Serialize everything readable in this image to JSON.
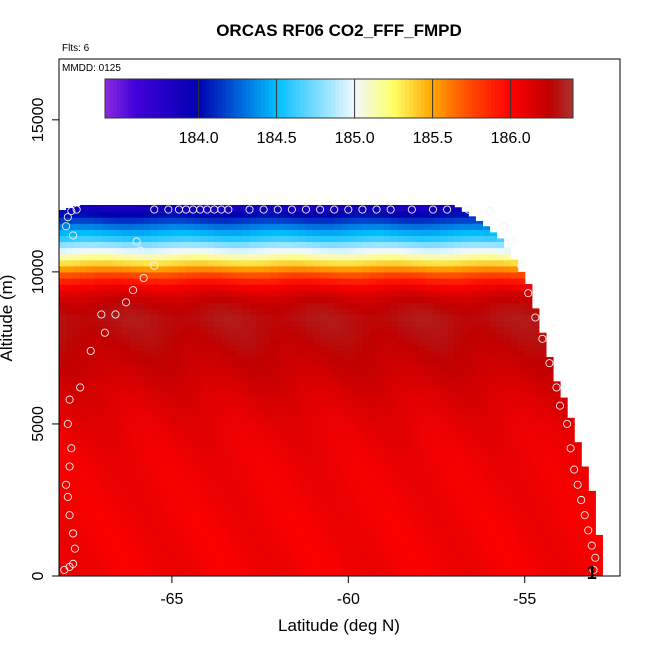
{
  "chart_data": {
    "type": "heatmap",
    "title": "ORCAS RF06 CO2_FFF_FMPD",
    "annotations": {
      "flights": "Flts: 6",
      "date": "MMDD: 0125"
    },
    "xlabel": "Latitude (deg N)",
    "ylabel": "Altitude (m)",
    "xlim": [
      -68.2,
      -52.3
    ],
    "ylim": [
      0,
      17000
    ],
    "x_ticks": [
      -65,
      -60,
      -55
    ],
    "x_tick_labels": [
      "-65",
      "-60",
      "-55"
    ],
    "y_ticks": [
      0,
      5000,
      10000,
      15000
    ],
    "y_tick_labels": [
      "0",
      "5000",
      "10000",
      "15000"
    ],
    "colorbar": {
      "min": 183.4,
      "max": 186.4,
      "ticks": [
        184.0,
        184.5,
        185.0,
        185.5,
        186.0
      ],
      "tick_labels": [
        "184.0",
        "184.5",
        "185.0",
        "185.5",
        "186.0"
      ],
      "stops": [
        {
          "v": 183.4,
          "c": "#8a2be2"
        },
        {
          "v": 183.6,
          "c": "#4000d8"
        },
        {
          "v": 184.0,
          "c": "#0000b0"
        },
        {
          "v": 184.5,
          "c": "#00bfff"
        },
        {
          "v": 185.0,
          "c": "#f0f8ff"
        },
        {
          "v": 185.25,
          "c": "#ffff66"
        },
        {
          "v": 185.5,
          "c": "#ffa500"
        },
        {
          "v": 185.75,
          "c": "#ff4500"
        },
        {
          "v": 186.0,
          "c": "#ff0000"
        },
        {
          "v": 186.25,
          "c": "#c00000"
        },
        {
          "v": 186.4,
          "c": "#a83232"
        }
      ]
    },
    "profile_top": {
      "lat": [
        -68.2,
        -67.6,
        -57.0,
        -56.2,
        -55.6,
        -55.2,
        -54.9,
        -54.7,
        -54.5,
        -54.3,
        -54.1,
        -53.8,
        -53.6,
        -53.4,
        -53.2,
        -53.0,
        -52.8
      ],
      "alt": [
        12000,
        12200,
        12200,
        11600,
        11000,
        10200,
        9600,
        8800,
        8000,
        7200,
        6400,
        5600,
        4800,
        4000,
        3200,
        2400,
        300
      ]
    },
    "field_profile": {
      "alt": [
        0,
        1000,
        2000,
        3000,
        4000,
        5000,
        6000,
        7000,
        8000,
        8500,
        9000,
        9300,
        9600,
        9900,
        10200,
        10500,
        10800,
        11100,
        11400,
        11700,
        12200
      ],
      "value": [
        186.05,
        186.05,
        186.05,
        186.06,
        186.07,
        186.1,
        186.15,
        186.22,
        186.28,
        186.3,
        186.25,
        186.15,
        186.0,
        185.75,
        185.45,
        185.15,
        184.9,
        184.6,
        184.4,
        184.15,
        183.8
      ]
    },
    "points": {
      "lat": [
        -68.05,
        -67.9,
        -67.8,
        -67.75,
        -67.8,
        -67.9,
        -67.95,
        -68.0,
        -67.9,
        -67.85,
        -67.95,
        -67.9,
        -67.6,
        -67.3,
        -66.9,
        -67.0,
        -66.6,
        -66.3,
        -66.1,
        -65.8,
        -65.5,
        -65.9,
        -66.0,
        -67.8,
        -68.0,
        -67.95,
        -67.85,
        -67.7,
        -65.5,
        -65.1,
        -64.8,
        -64.6,
        -64.4,
        -64.2,
        -64.0,
        -63.8,
        -63.6,
        -63.4,
        -62.8,
        -62.4,
        -62.0,
        -61.6,
        -61.2,
        -60.8,
        -60.4,
        -60.0,
        -59.6,
        -59.2,
        -58.8,
        -58.2,
        -57.6,
        -57.2,
        -56.6,
        -56.0,
        -55.6,
        -55.4,
        -55.1,
        -54.9,
        -54.7,
        -54.5,
        -54.3,
        -54.1,
        -54.0,
        -53.8,
        -53.7,
        -53.6,
        -53.5,
        -53.4,
        -53.3,
        -53.2,
        -53.1,
        -53.0,
        -53.05
      ],
      "alt": [
        200,
        300,
        400,
        900,
        1400,
        2000,
        2600,
        3000,
        3600,
        4200,
        5000,
        5800,
        6200,
        7400,
        8000,
        8600,
        8600,
        9000,
        9400,
        9800,
        10200,
        10700,
        11000,
        11200,
        11500,
        11800,
        12000,
        12050,
        12050,
        12050,
        12050,
        12050,
        12050,
        12050,
        12050,
        12050,
        12050,
        12050,
        12050,
        12050,
        12050,
        12050,
        12050,
        12050,
        12050,
        12050,
        12050,
        12050,
        12050,
        12050,
        12050,
        12050,
        12050,
        12000,
        11500,
        11000,
        10200,
        9300,
        8500,
        7800,
        7000,
        6200,
        5600,
        5000,
        4200,
        3500,
        3000,
        2500,
        2000,
        1500,
        1000,
        600,
        200
      ]
    },
    "marker": {
      "lat": -53.1,
      "alt": 100,
      "label": "1"
    }
  }
}
